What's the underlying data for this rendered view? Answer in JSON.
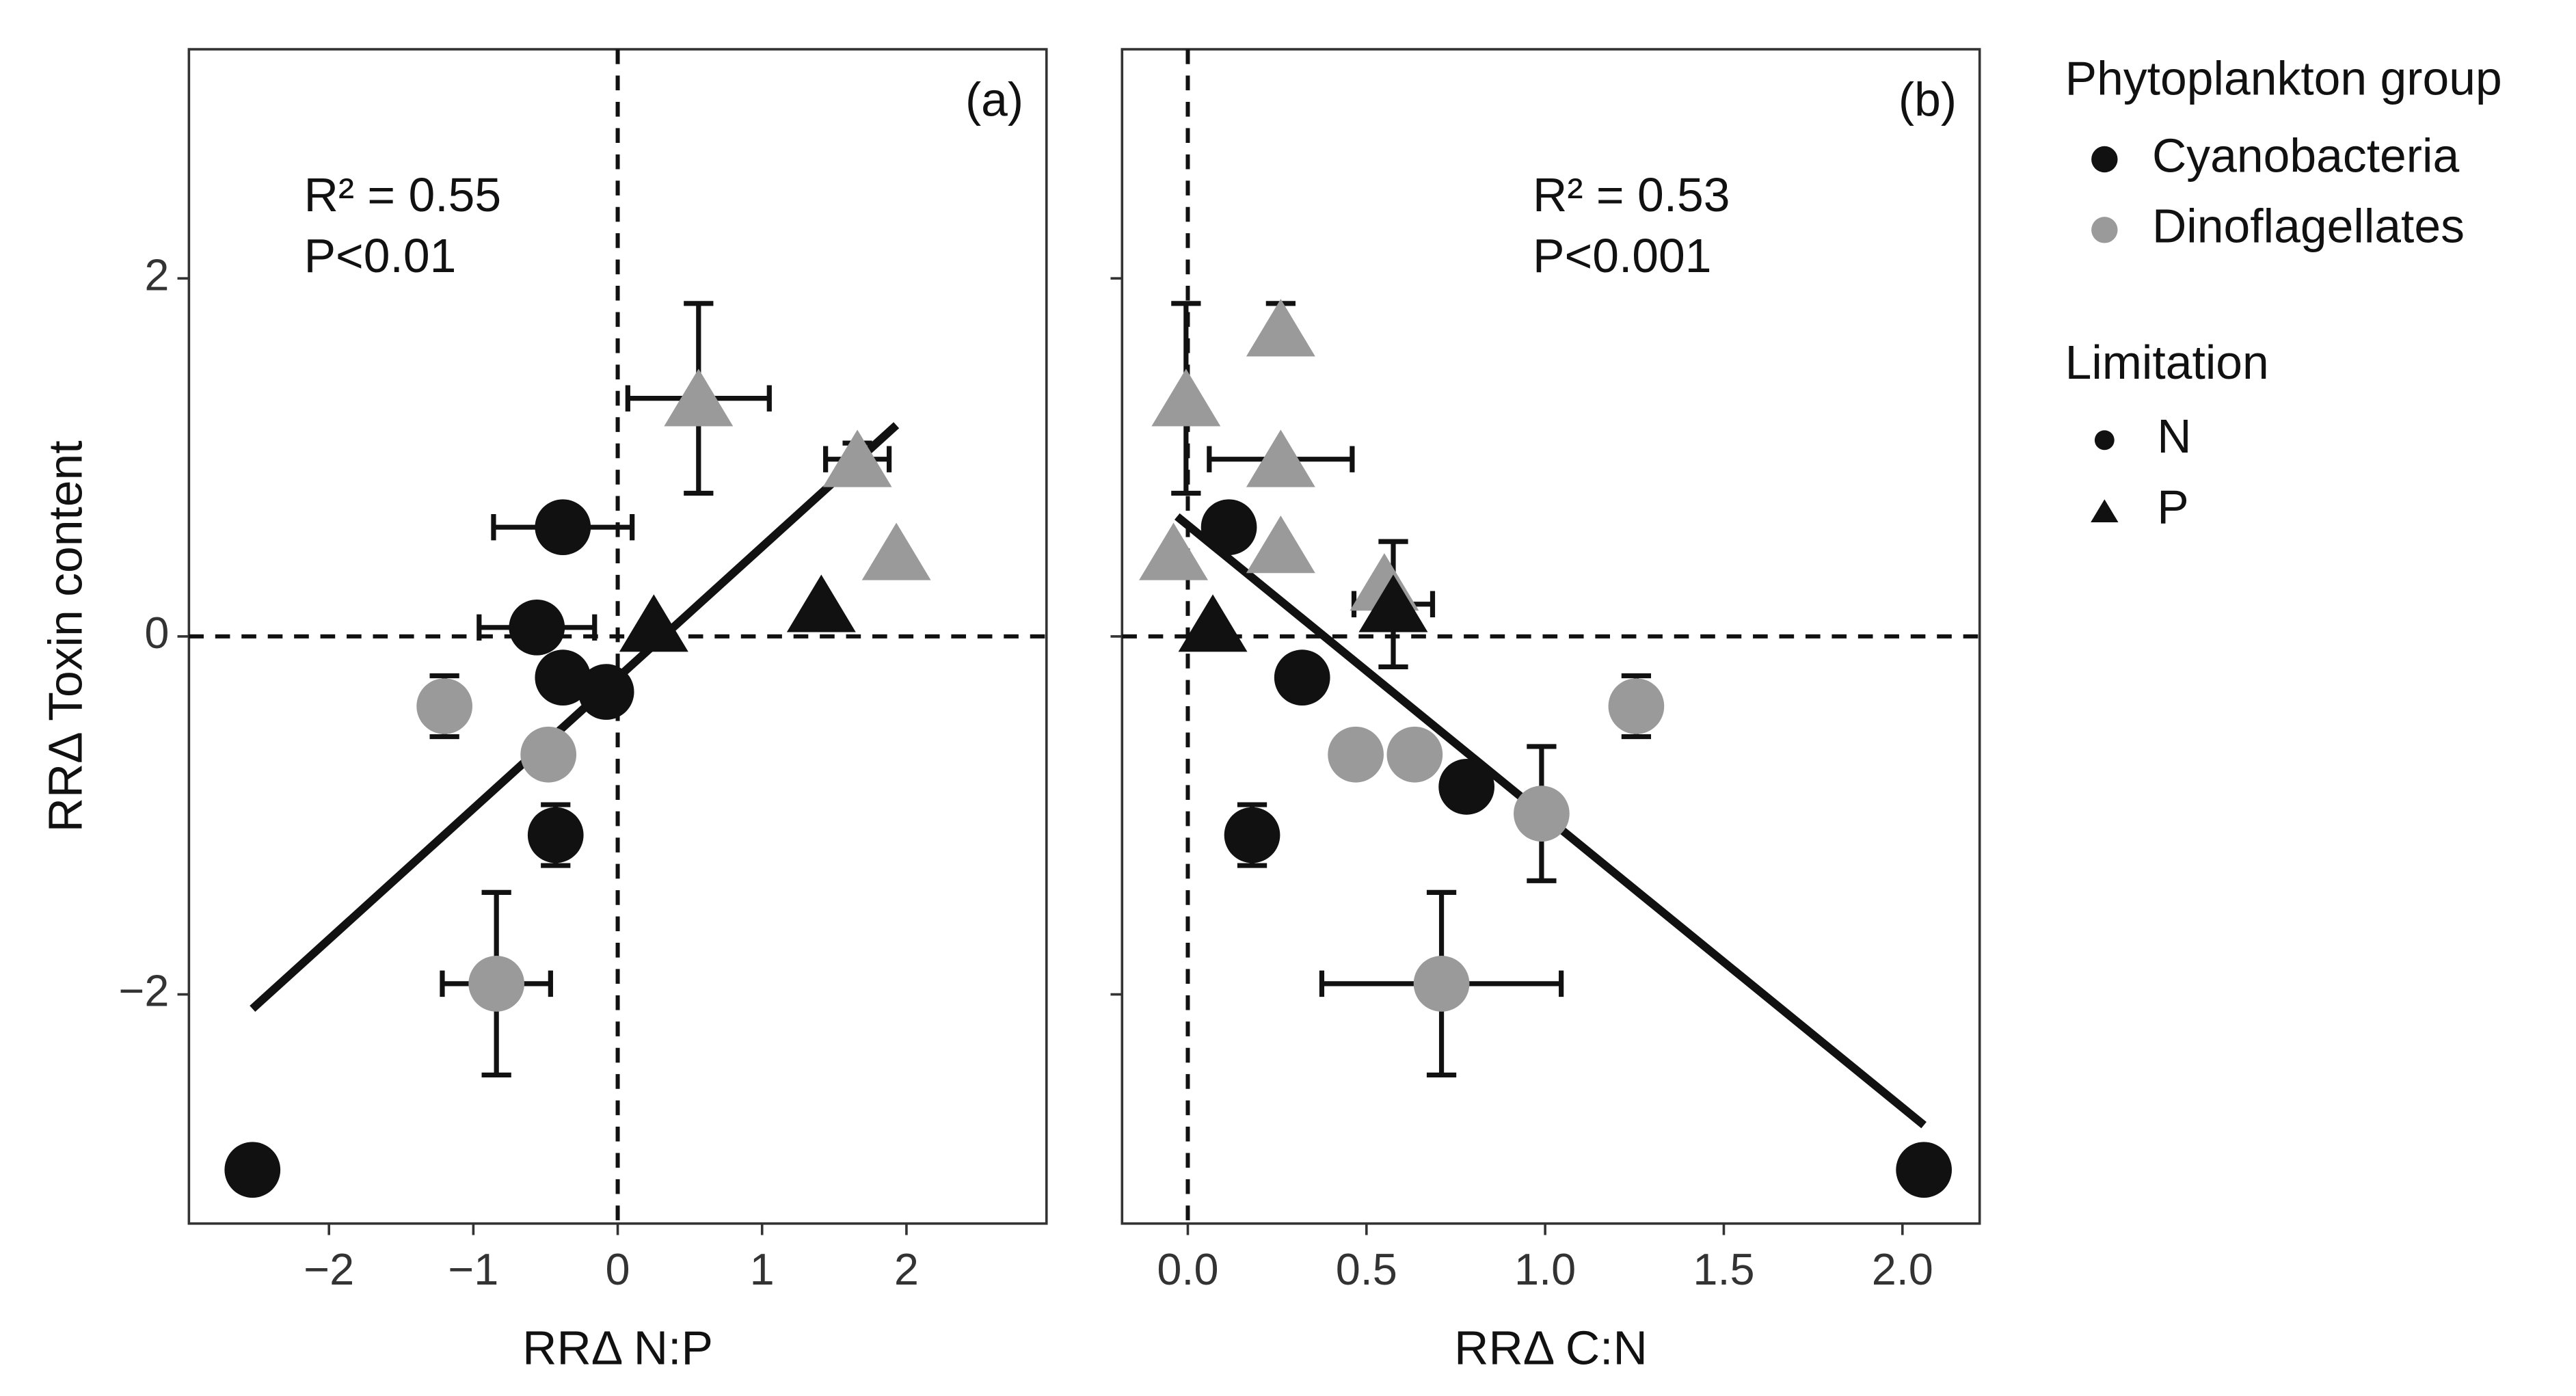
{
  "chart_data": [
    {
      "type": "scatter",
      "panel_label": "(a)",
      "annotations": [
        "R² = 0.55",
        "P<0.01"
      ],
      "xlabel": "RRΔ N:P",
      "ylabel": "RRΔ Toxin content",
      "xlim": [
        -2.97,
        2.97
      ],
      "ylim": [
        -3.28,
        3.28
      ],
      "xticks": [
        {
          "value": -2,
          "label": "−2"
        },
        {
          "value": -1,
          "label": "−1"
        },
        0,
        1,
        2
      ],
      "yticks": [
        {
          "value": -2,
          "label": "−2"
        },
        0,
        2
      ],
      "show_ytick_labels": true,
      "hline": 0,
      "vline": 0,
      "fit": {
        "x": [
          -2.53,
          1.93
        ],
        "y": [
          -2.08,
          1.18
        ]
      },
      "series": [
        {
          "group": "Dinoflagellates",
          "limitation": "N",
          "color": "#9a9a9a",
          "marker": "circle",
          "x": [
            -1.2,
            -0.48,
            -0.84
          ],
          "y": [
            -0.39,
            -0.66,
            -1.94
          ],
          "xerr": [
            null,
            null,
            0.375
          ],
          "yerr": [
            0.17,
            null,
            0.51
          ]
        },
        {
          "group": "Dinoflagellates",
          "limitation": "P",
          "color": "#9a9a9a",
          "marker": "triangle",
          "x": [
            0.56,
            1.66,
            1.93
          ],
          "y": [
            1.33,
            0.99,
            0.47
          ],
          "xerr": [
            0.49,
            0.22,
            null
          ],
          "yerr": [
            0.53,
            0.09,
            null
          ]
        },
        {
          "group": "Cyanobacteria",
          "limitation": "N",
          "color": "#111111",
          "marker": "circle",
          "x": [
            -0.38,
            -0.56,
            -0.38,
            -0.08,
            -0.43,
            -2.53
          ],
          "y": [
            0.61,
            0.05,
            -0.23,
            -0.31,
            -1.11,
            -2.98
          ],
          "xerr": [
            0.48,
            0.4,
            null,
            null,
            null,
            null
          ],
          "yerr": [
            null,
            null,
            null,
            null,
            0.17,
            null
          ]
        },
        {
          "group": "Cyanobacteria",
          "limitation": "P",
          "color": "#111111",
          "marker": "triangle",
          "x": [
            0.25,
            1.41
          ],
          "y": [
            0.07,
            0.18
          ],
          "xerr": [
            null,
            null
          ],
          "yerr": [
            null,
            null
          ]
        }
      ]
    },
    {
      "type": "scatter",
      "panel_label": "(b)",
      "annotations": [
        "R² = 0.53",
        "P<0.001"
      ],
      "xlabel": "RRΔ C:N",
      "xlim": [
        -0.184,
        2.216
      ],
      "ylim": [
        -3.28,
        3.28
      ],
      "xticks": [
        {
          "value": 0,
          "label": "0.0"
        },
        0.5,
        {
          "value": 1,
          "label": "1.0"
        },
        1.5,
        {
          "value": 2,
          "label": "2.0"
        }
      ],
      "yticks": [
        -2,
        0,
        2
      ],
      "show_ytick_labels": false,
      "hline": 0,
      "vline": 0,
      "fit": {
        "x": [
          -0.03,
          2.06
        ],
        "y": [
          0.67,
          -2.73
        ]
      },
      "series": [
        {
          "group": "Dinoflagellates",
          "limitation": "N",
          "color": "#9a9a9a",
          "marker": "circle",
          "x": [
            1.255,
            0.47,
            0.635,
            0.99,
            0.71
          ],
          "y": [
            -0.39,
            -0.66,
            -0.66,
            -0.99,
            -1.94
          ],
          "xerr": [
            null,
            null,
            null,
            null,
            0.335
          ],
          "yerr": [
            0.17,
            0.1,
            null,
            0.375,
            0.51
          ]
        },
        {
          "group": "Dinoflagellates",
          "limitation": "P",
          "color": "#9a9a9a",
          "marker": "triangle",
          "x": [
            -0.005,
            0.26,
            0.26,
            0.26,
            -0.04,
            0.55
          ],
          "y": [
            1.33,
            1.72,
            0.99,
            0.51,
            0.47,
            0.3
          ],
          "xerr": [
            null,
            null,
            0.2,
            null,
            null,
            null
          ],
          "yerr": [
            0.53,
            0.14,
            null,
            null,
            null,
            null
          ]
        },
        {
          "group": "Cyanobacteria",
          "limitation": "N",
          "color": "#111111",
          "marker": "circle",
          "x": [
            0.115,
            0.32,
            0.18,
            0.78,
            2.06
          ],
          "y": [
            0.61,
            -0.23,
            -1.11,
            -0.84,
            -2.98
          ],
          "xerr": [
            null,
            null,
            null,
            null,
            null
          ],
          "yerr": [
            null,
            null,
            0.17,
            0.1,
            null
          ]
        },
        {
          "group": "Cyanobacteria",
          "limitation": "P",
          "color": "#111111",
          "marker": "triangle",
          "x": [
            0.07,
            0.575
          ],
          "y": [
            0.07,
            0.18
          ],
          "xerr": [
            null,
            0.11
          ],
          "yerr": [
            null,
            0.35
          ]
        }
      ]
    }
  ],
  "legend": {
    "title": "Phytoplankton group",
    "groups": [
      {
        "name": "Cyanobacteria",
        "color": "#111111"
      },
      {
        "name": "Dinoflagellates",
        "color": "#9a9a9a"
      }
    ],
    "shape_title": "Limitation",
    "shapes": [
      {
        "name": "N",
        "marker": "circle"
      },
      {
        "name": "P",
        "marker": "triangle"
      }
    ]
  }
}
